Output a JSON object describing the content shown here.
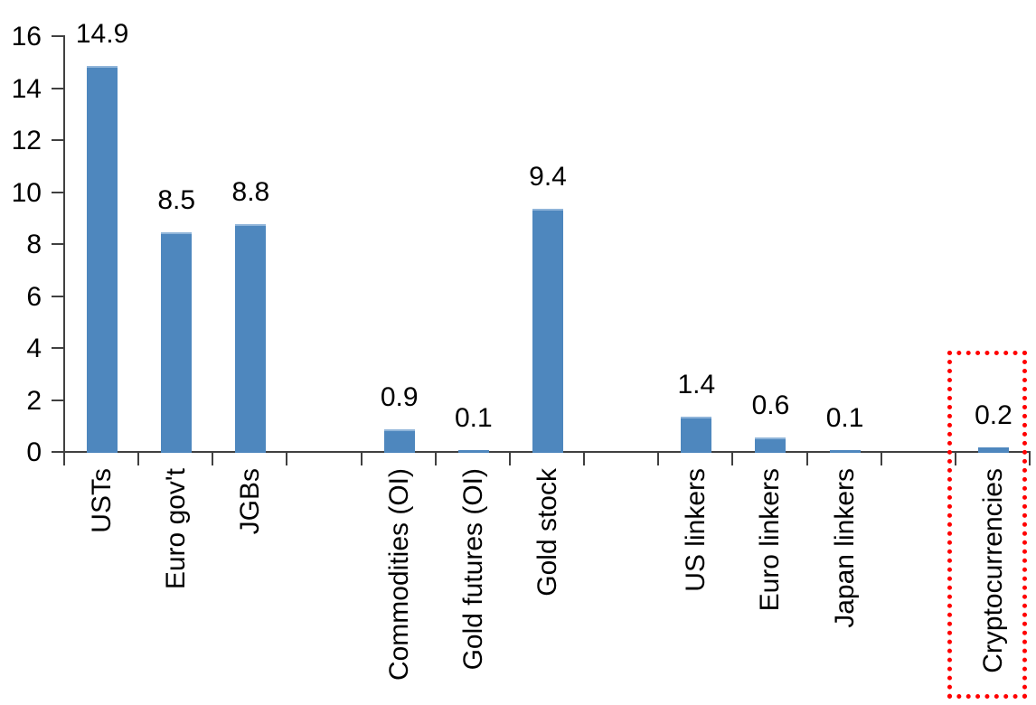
{
  "chart_data": {
    "type": "bar",
    "title": "",
    "xlabel": "",
    "ylabel": "",
    "ylim": [
      0,
      16
    ],
    "yticks": [
      "0",
      "2",
      "4",
      "6",
      "8",
      "10",
      "12",
      "14",
      "16"
    ],
    "ytick_values": [
      0,
      2,
      4,
      6,
      8,
      10,
      12,
      14,
      16
    ],
    "grid": false,
    "legend": false,
    "categories": [
      "USTs",
      "Euro gov't",
      "JGBs",
      "",
      "Commodities (OI)",
      "Gold futures (OI)",
      "Gold stock",
      "",
      "US linkers",
      "Euro linkers",
      "Japan linkers",
      "",
      "Cryptocurrencies"
    ],
    "values": [
      14.9,
      8.5,
      8.8,
      null,
      0.9,
      0.1,
      9.4,
      null,
      1.4,
      0.6,
      0.1,
      null,
      0.2
    ],
    "value_labels": [
      "14.9",
      "8.5",
      "8.8",
      "",
      "0.9",
      "0.1",
      "9.4",
      "",
      "1.4",
      "0.6",
      "0.1",
      "",
      "0.2"
    ],
    "colors": {
      "bar_fill": "#4E87BE",
      "bar_top_edge": "#8FB4D9",
      "axis": "#404040",
      "text": "#000000",
      "highlight": "#FF0000"
    },
    "highlight": {
      "category": "Cryptocurrencies",
      "style": "dotted",
      "note": "red dotted rectangle around Cryptocurrencies bar and label"
    }
  }
}
